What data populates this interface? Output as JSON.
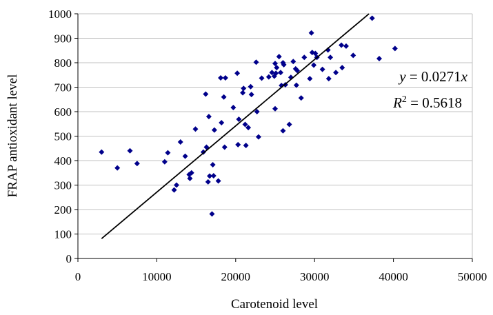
{
  "chart_data": {
    "type": "scatter",
    "title": "",
    "xlabel": "Carotenoid level",
    "ylabel": "FRAP antioxidant level",
    "xlim": [
      0,
      50000
    ],
    "ylim": [
      0,
      1000
    ],
    "xticks": [
      0,
      10000,
      20000,
      30000,
      40000,
      50000
    ],
    "yticks": [
      0,
      100,
      200,
      300,
      400,
      500,
      600,
      700,
      800,
      900,
      1000
    ],
    "xtick_labels": [
      "0",
      "10000",
      "20000",
      "30000",
      "40000",
      "50000"
    ],
    "ytick_labels": [
      "0",
      "100",
      "200",
      "300",
      "400",
      "500",
      "600",
      "700",
      "800",
      "900",
      "1000"
    ],
    "grid": {
      "horizontal": true,
      "vertical": false
    },
    "legend": "none",
    "marker": {
      "shape": "diamond",
      "color": "#00008B"
    },
    "trendline": {
      "slope": 0.0271,
      "intercept": 0,
      "x_range": [
        3000,
        36900
      ],
      "color": "#000000",
      "equation_text": {
        "y": "y",
        "eq": " = 0.0271",
        "x": "x"
      },
      "r2_text": {
        "R": "R",
        "sup": "2",
        "eq": " = 0.5618"
      }
    },
    "points": [
      {
        "x": 3000,
        "y": 435
      },
      {
        "x": 5000,
        "y": 370
      },
      {
        "x": 6600,
        "y": 440
      },
      {
        "x": 7500,
        "y": 388
      },
      {
        "x": 11000,
        "y": 395
      },
      {
        "x": 11400,
        "y": 432
      },
      {
        "x": 12200,
        "y": 280
      },
      {
        "x": 12500,
        "y": 300
      },
      {
        "x": 13000,
        "y": 476
      },
      {
        "x": 13600,
        "y": 418
      },
      {
        "x": 14100,
        "y": 343
      },
      {
        "x": 14200,
        "y": 327
      },
      {
        "x": 14400,
        "y": 350
      },
      {
        "x": 14900,
        "y": 529
      },
      {
        "x": 15900,
        "y": 435
      },
      {
        "x": 16200,
        "y": 672
      },
      {
        "x": 16300,
        "y": 455
      },
      {
        "x": 16500,
        "y": 313
      },
      {
        "x": 16600,
        "y": 580
      },
      {
        "x": 16700,
        "y": 337
      },
      {
        "x": 17000,
        "y": 182
      },
      {
        "x": 17100,
        "y": 383
      },
      {
        "x": 17200,
        "y": 338
      },
      {
        "x": 17300,
        "y": 525
      },
      {
        "x": 17800,
        "y": 317
      },
      {
        "x": 18100,
        "y": 738
      },
      {
        "x": 18200,
        "y": 555
      },
      {
        "x": 18500,
        "y": 660
      },
      {
        "x": 18600,
        "y": 455
      },
      {
        "x": 18700,
        "y": 738
      },
      {
        "x": 19700,
        "y": 617
      },
      {
        "x": 20200,
        "y": 757
      },
      {
        "x": 20300,
        "y": 465
      },
      {
        "x": 20400,
        "y": 569
      },
      {
        "x": 20900,
        "y": 677
      },
      {
        "x": 21000,
        "y": 695
      },
      {
        "x": 21200,
        "y": 548
      },
      {
        "x": 21300,
        "y": 462
      },
      {
        "x": 21600,
        "y": 535
      },
      {
        "x": 21900,
        "y": 702
      },
      {
        "x": 22000,
        "y": 670
      },
      {
        "x": 22600,
        "y": 802
      },
      {
        "x": 22700,
        "y": 600
      },
      {
        "x": 22900,
        "y": 497
      },
      {
        "x": 23300,
        "y": 737
      },
      {
        "x": 24200,
        "y": 742
      },
      {
        "x": 24600,
        "y": 760
      },
      {
        "x": 24900,
        "y": 745
      },
      {
        "x": 25000,
        "y": 612
      },
      {
        "x": 25000,
        "y": 797
      },
      {
        "x": 25100,
        "y": 757
      },
      {
        "x": 25200,
        "y": 780
      },
      {
        "x": 25500,
        "y": 825
      },
      {
        "x": 25700,
        "y": 760
      },
      {
        "x": 25800,
        "y": 707
      },
      {
        "x": 26000,
        "y": 522
      },
      {
        "x": 26000,
        "y": 800
      },
      {
        "x": 26100,
        "y": 792
      },
      {
        "x": 26300,
        "y": 710
      },
      {
        "x": 26800,
        "y": 548
      },
      {
        "x": 27000,
        "y": 740
      },
      {
        "x": 27300,
        "y": 805
      },
      {
        "x": 27600,
        "y": 775
      },
      {
        "x": 27700,
        "y": 708
      },
      {
        "x": 27800,
        "y": 768
      },
      {
        "x": 28300,
        "y": 656
      },
      {
        "x": 28700,
        "y": 822
      },
      {
        "x": 29400,
        "y": 735
      },
      {
        "x": 29600,
        "y": 922
      },
      {
        "x": 29700,
        "y": 842
      },
      {
        "x": 29900,
        "y": 790
      },
      {
        "x": 30100,
        "y": 838
      },
      {
        "x": 30300,
        "y": 822
      },
      {
        "x": 31000,
        "y": 773
      },
      {
        "x": 31700,
        "y": 852
      },
      {
        "x": 31800,
        "y": 735
      },
      {
        "x": 32000,
        "y": 822
      },
      {
        "x": 32700,
        "y": 760
      },
      {
        "x": 33400,
        "y": 872
      },
      {
        "x": 33500,
        "y": 780
      },
      {
        "x": 34000,
        "y": 868
      },
      {
        "x": 34900,
        "y": 830
      },
      {
        "x": 37300,
        "y": 982
      },
      {
        "x": 38200,
        "y": 817
      },
      {
        "x": 40200,
        "y": 858
      }
    ]
  }
}
